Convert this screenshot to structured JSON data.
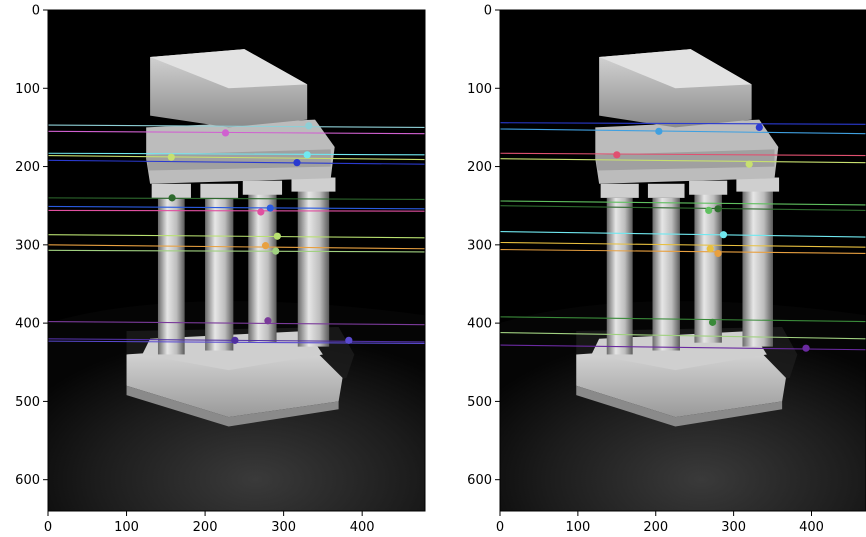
{
  "chart_data": [
    {
      "type": "image",
      "xlim": [
        0,
        480
      ],
      "ylim": [
        640,
        0
      ],
      "x_ticks": [
        0,
        100,
        200,
        300,
        400
      ],
      "y_ticks": [
        0,
        100,
        200,
        300,
        400,
        500,
        600
      ],
      "x_tick_labels": [
        "0",
        "100",
        "200",
        "300",
        "400"
      ],
      "y_tick_labels": [
        "0",
        "100",
        "200",
        "300",
        "400",
        "500",
        "600"
      ],
      "points": [
        {
          "x": 332,
          "y": 148,
          "color": "#8ecfd6"
        },
        {
          "x": 226,
          "y": 157,
          "color": "#d060d0"
        },
        {
          "x": 330,
          "y": 185,
          "color": "#70e8f0"
        },
        {
          "x": 157,
          "y": 188,
          "color": "#c8e070"
        },
        {
          "x": 317,
          "y": 195,
          "color": "#2a3ad0"
        },
        {
          "x": 158,
          "y": 240,
          "color": "#2e6a2e"
        },
        {
          "x": 283,
          "y": 253,
          "color": "#2a5ae0"
        },
        {
          "x": 271,
          "y": 258,
          "color": "#e050a0"
        },
        {
          "x": 292,
          "y": 289,
          "color": "#b8e070"
        },
        {
          "x": 277,
          "y": 301,
          "color": "#e8a040"
        },
        {
          "x": 290,
          "y": 308,
          "color": "#a0d080"
        },
        {
          "x": 280,
          "y": 397,
          "color": "#7a3a9a"
        },
        {
          "x": 238,
          "y": 422,
          "color": "#5030a0"
        },
        {
          "x": 383,
          "y": 422,
          "color": "#5a4ad0"
        }
      ],
      "lines": [
        {
          "y1": 147,
          "y2": 150,
          "color": "#8ecfd6"
        },
        {
          "y1": 155,
          "y2": 158,
          "color": "#d060d0"
        },
        {
          "y1": 183,
          "y2": 185,
          "color": "#70e8f0"
        },
        {
          "y1": 186,
          "y2": 191,
          "color": "#c8e070"
        },
        {
          "y1": 192,
          "y2": 197,
          "color": "#2a3ad0"
        },
        {
          "y1": 240,
          "y2": 242,
          "color": "#2e6a2e"
        },
        {
          "y1": 251,
          "y2": 254,
          "color": "#2a5ae0"
        },
        {
          "y1": 256,
          "y2": 257,
          "color": "#e050a0"
        },
        {
          "y1": 287,
          "y2": 291,
          "color": "#b8e070"
        },
        {
          "y1": 300,
          "y2": 305,
          "color": "#e8a040"
        },
        {
          "y1": 307,
          "y2": 309,
          "color": "#a0d080"
        },
        {
          "y1": 398,
          "y2": 402,
          "color": "#7a3a9a"
        },
        {
          "y1": 420,
          "y2": 424,
          "color": "#5030a0"
        },
        {
          "y1": 423,
          "y2": 426,
          "color": "#5a4ad0"
        }
      ]
    },
    {
      "type": "image",
      "xlim": [
        0,
        470
      ],
      "ylim": [
        640,
        0
      ],
      "x_ticks": [
        0,
        100,
        200,
        300,
        400
      ],
      "y_ticks": [
        0,
        100,
        200,
        300,
        400,
        500,
        600
      ],
      "x_tick_labels": [
        "0",
        "100",
        "200",
        "300",
        "400"
      ],
      "y_tick_labels": [
        "0",
        "100",
        "200",
        "300",
        "400",
        "500",
        "600"
      ],
      "points": [
        {
          "x": 333,
          "y": 150,
          "color": "#2a3ad0"
        },
        {
          "x": 204,
          "y": 155,
          "color": "#40a0e0"
        },
        {
          "x": 150,
          "y": 185,
          "color": "#e05070"
        },
        {
          "x": 320,
          "y": 197,
          "color": "#c8e070"
        },
        {
          "x": 268,
          "y": 256,
          "color": "#60c060"
        },
        {
          "x": 280,
          "y": 254,
          "color": "#2e6a2e"
        },
        {
          "x": 287,
          "y": 287,
          "color": "#70e8f0"
        },
        {
          "x": 270,
          "y": 305,
          "color": "#e8c040"
        },
        {
          "x": 280,
          "y": 311,
          "color": "#e8a040"
        },
        {
          "x": 273,
          "y": 399,
          "color": "#3a8a3a"
        },
        {
          "x": 393,
          "y": 432,
          "color": "#6a2aa0"
        }
      ],
      "lines": [
        {
          "y1": 144,
          "y2": 146,
          "color": "#2a3ad0"
        },
        {
          "y1": 152,
          "y2": 158,
          "color": "#40a0e0"
        },
        {
          "y1": 183,
          "y2": 186,
          "color": "#e05070"
        },
        {
          "y1": 190,
          "y2": 195,
          "color": "#c8e070"
        },
        {
          "y1": 244,
          "y2": 249,
          "color": "#60c060"
        },
        {
          "y1": 250,
          "y2": 256,
          "color": "#2e6a2e"
        },
        {
          "y1": 283,
          "y2": 290,
          "color": "#70e8f0"
        },
        {
          "y1": 297,
          "y2": 303,
          "color": "#e8c040"
        },
        {
          "y1": 306,
          "y2": 311,
          "color": "#e8a040"
        },
        {
          "y1": 392,
          "y2": 398,
          "color": "#3a8a3a"
        },
        {
          "y1": 412,
          "y2": 420,
          "color": "#a0d080"
        },
        {
          "y1": 428,
          "y2": 434,
          "color": "#6a2aa0"
        }
      ]
    }
  ]
}
